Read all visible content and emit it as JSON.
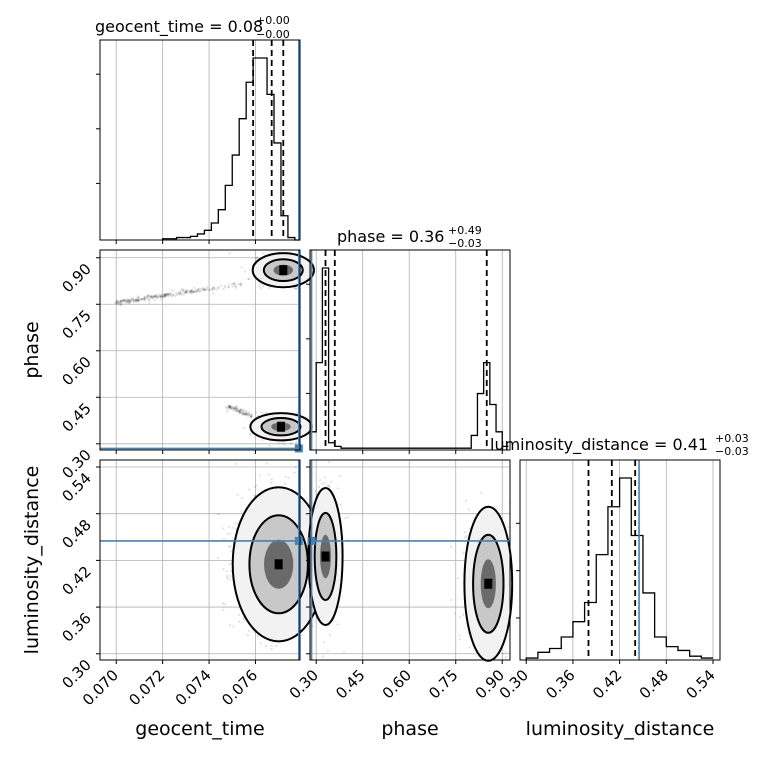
{
  "colors": {
    "truth": "#4682b4",
    "histogram": "#000000",
    "grid": "#b0b0b0",
    "scatter": "#000000"
  },
  "titles": {
    "geocent_time": {
      "base": "geocent_time = 0.08",
      "sup": "+0.00",
      "sub": "−0.00"
    },
    "phase": {
      "base": "phase = 0.36",
      "sup": "+0.49",
      "sub": "−0.03"
    },
    "luminosity_distance": {
      "base": "luminosity_distance = 0.41",
      "sup": "+0.03",
      "sub": "−0.03"
    }
  },
  "axis_labels": {
    "x_geocent_time": "geocent_time",
    "x_phase": "phase",
    "x_luminosity_distance": "luminosity_distance",
    "y_phase": "phase",
    "y_luminosity_distance": "luminosity_distance"
  },
  "chart_data": {
    "type": "corner",
    "parameters": [
      "geocent_time",
      "phase",
      "luminosity_distance"
    ],
    "truths": {
      "geocent_time": 0.07787,
      "phase": 0.285,
      "luminosity_distance": 0.445
    },
    "ranges": {
      "geocent_time": [
        0.0693,
        0.07792
      ],
      "phase": [
        0.28,
        0.925
      ],
      "luminosity_distance": [
        0.292,
        0.549
      ]
    },
    "ticks": {
      "geocent_time": [
        0.07,
        0.072,
        0.074,
        0.076
      ],
      "phase": [
        0.3,
        0.45,
        0.6,
        0.75,
        0.9
      ],
      "luminosity_distance": [
        0.3,
        0.36,
        0.42,
        0.48,
        0.54
      ]
    },
    "tick_labels": {
      "geocent_time": [
        "0.070",
        "0.072",
        "0.074",
        "0.076"
      ],
      "phase": [
        "0.30",
        "0.45",
        "0.60",
        "0.75",
        "0.90"
      ],
      "luminosity_distance": [
        "0.30",
        "0.36",
        "0.42",
        "0.48",
        "0.54"
      ]
    },
    "quantiles": {
      "geocent_time": [
        0.0759,
        0.0767,
        0.0772
      ],
      "phase": [
        0.33,
        0.36,
        0.85
      ],
      "luminosity_distance": [
        0.38,
        0.41,
        0.44
      ]
    },
    "histograms": {
      "geocent_time": {
        "edges": [
          0.072,
          0.0723,
          0.0726,
          0.0729,
          0.0732,
          0.0735,
          0.0738,
          0.0741,
          0.0744,
          0.0747,
          0.075,
          0.0753,
          0.0756,
          0.0759,
          0.0762,
          0.0765,
          0.0768,
          0.0771,
          0.0774,
          0.0777,
          0.078
        ],
        "counts": [
          1,
          1,
          2,
          2,
          3,
          5,
          8,
          14,
          25,
          45,
          70,
          100,
          130,
          150,
          150,
          120,
          80,
          20,
          2,
          0
        ]
      },
      "phase": {
        "edges": [
          0.28,
          0.3,
          0.32,
          0.34,
          0.36,
          0.38,
          0.4,
          0.42,
          0.44,
          0.46,
          0.48,
          0.5,
          0.52,
          0.54,
          0.56,
          0.58,
          0.6,
          0.62,
          0.64,
          0.66,
          0.68,
          0.7,
          0.72,
          0.74,
          0.76,
          0.78,
          0.8,
          0.82,
          0.84,
          0.86,
          0.88,
          0.9,
          0.92
        ],
        "counts": [
          10,
          48,
          100,
          4,
          2,
          1,
          1,
          1,
          1,
          1,
          1,
          1,
          1,
          1,
          1,
          1,
          1,
          1,
          1,
          1,
          1,
          1,
          1,
          1,
          1,
          1,
          8,
          31,
          48,
          25,
          10,
          2
        ]
      },
      "luminosity_distance": {
        "edges": [
          0.3,
          0.315,
          0.33,
          0.345,
          0.36,
          0.375,
          0.39,
          0.405,
          0.42,
          0.435,
          0.45,
          0.465,
          0.48,
          0.495,
          0.51,
          0.525,
          0.54
        ],
        "counts": [
          1,
          4,
          6,
          12,
          20,
          30,
          55,
          80,
          95,
          65,
          35,
          12,
          7,
          5,
          2,
          1
        ]
      }
    },
    "clusters_2d": {
      "phase_vs_geocent_time": [
        {
          "x_center": 0.0772,
          "y_center": 0.86,
          "x_width": 0.0006,
          "y_width": 0.025
        },
        {
          "x_center": 0.0771,
          "y_center": 0.355,
          "x_width": 0.0006,
          "y_width": 0.02
        }
      ],
      "luminosity_distance_vs_geocent_time": [
        {
          "x_center": 0.077,
          "y_center": 0.415,
          "x_width": 0.0009,
          "y_width": 0.045
        }
      ],
      "luminosity_distance_vs_phase": [
        {
          "x_center": 0.33,
          "y_center": 0.425,
          "x_width": 0.025,
          "y_width": 0.04
        },
        {
          "x_center": 0.855,
          "y_center": 0.39,
          "x_width": 0.035,
          "y_width": 0.045
        }
      ]
    }
  }
}
